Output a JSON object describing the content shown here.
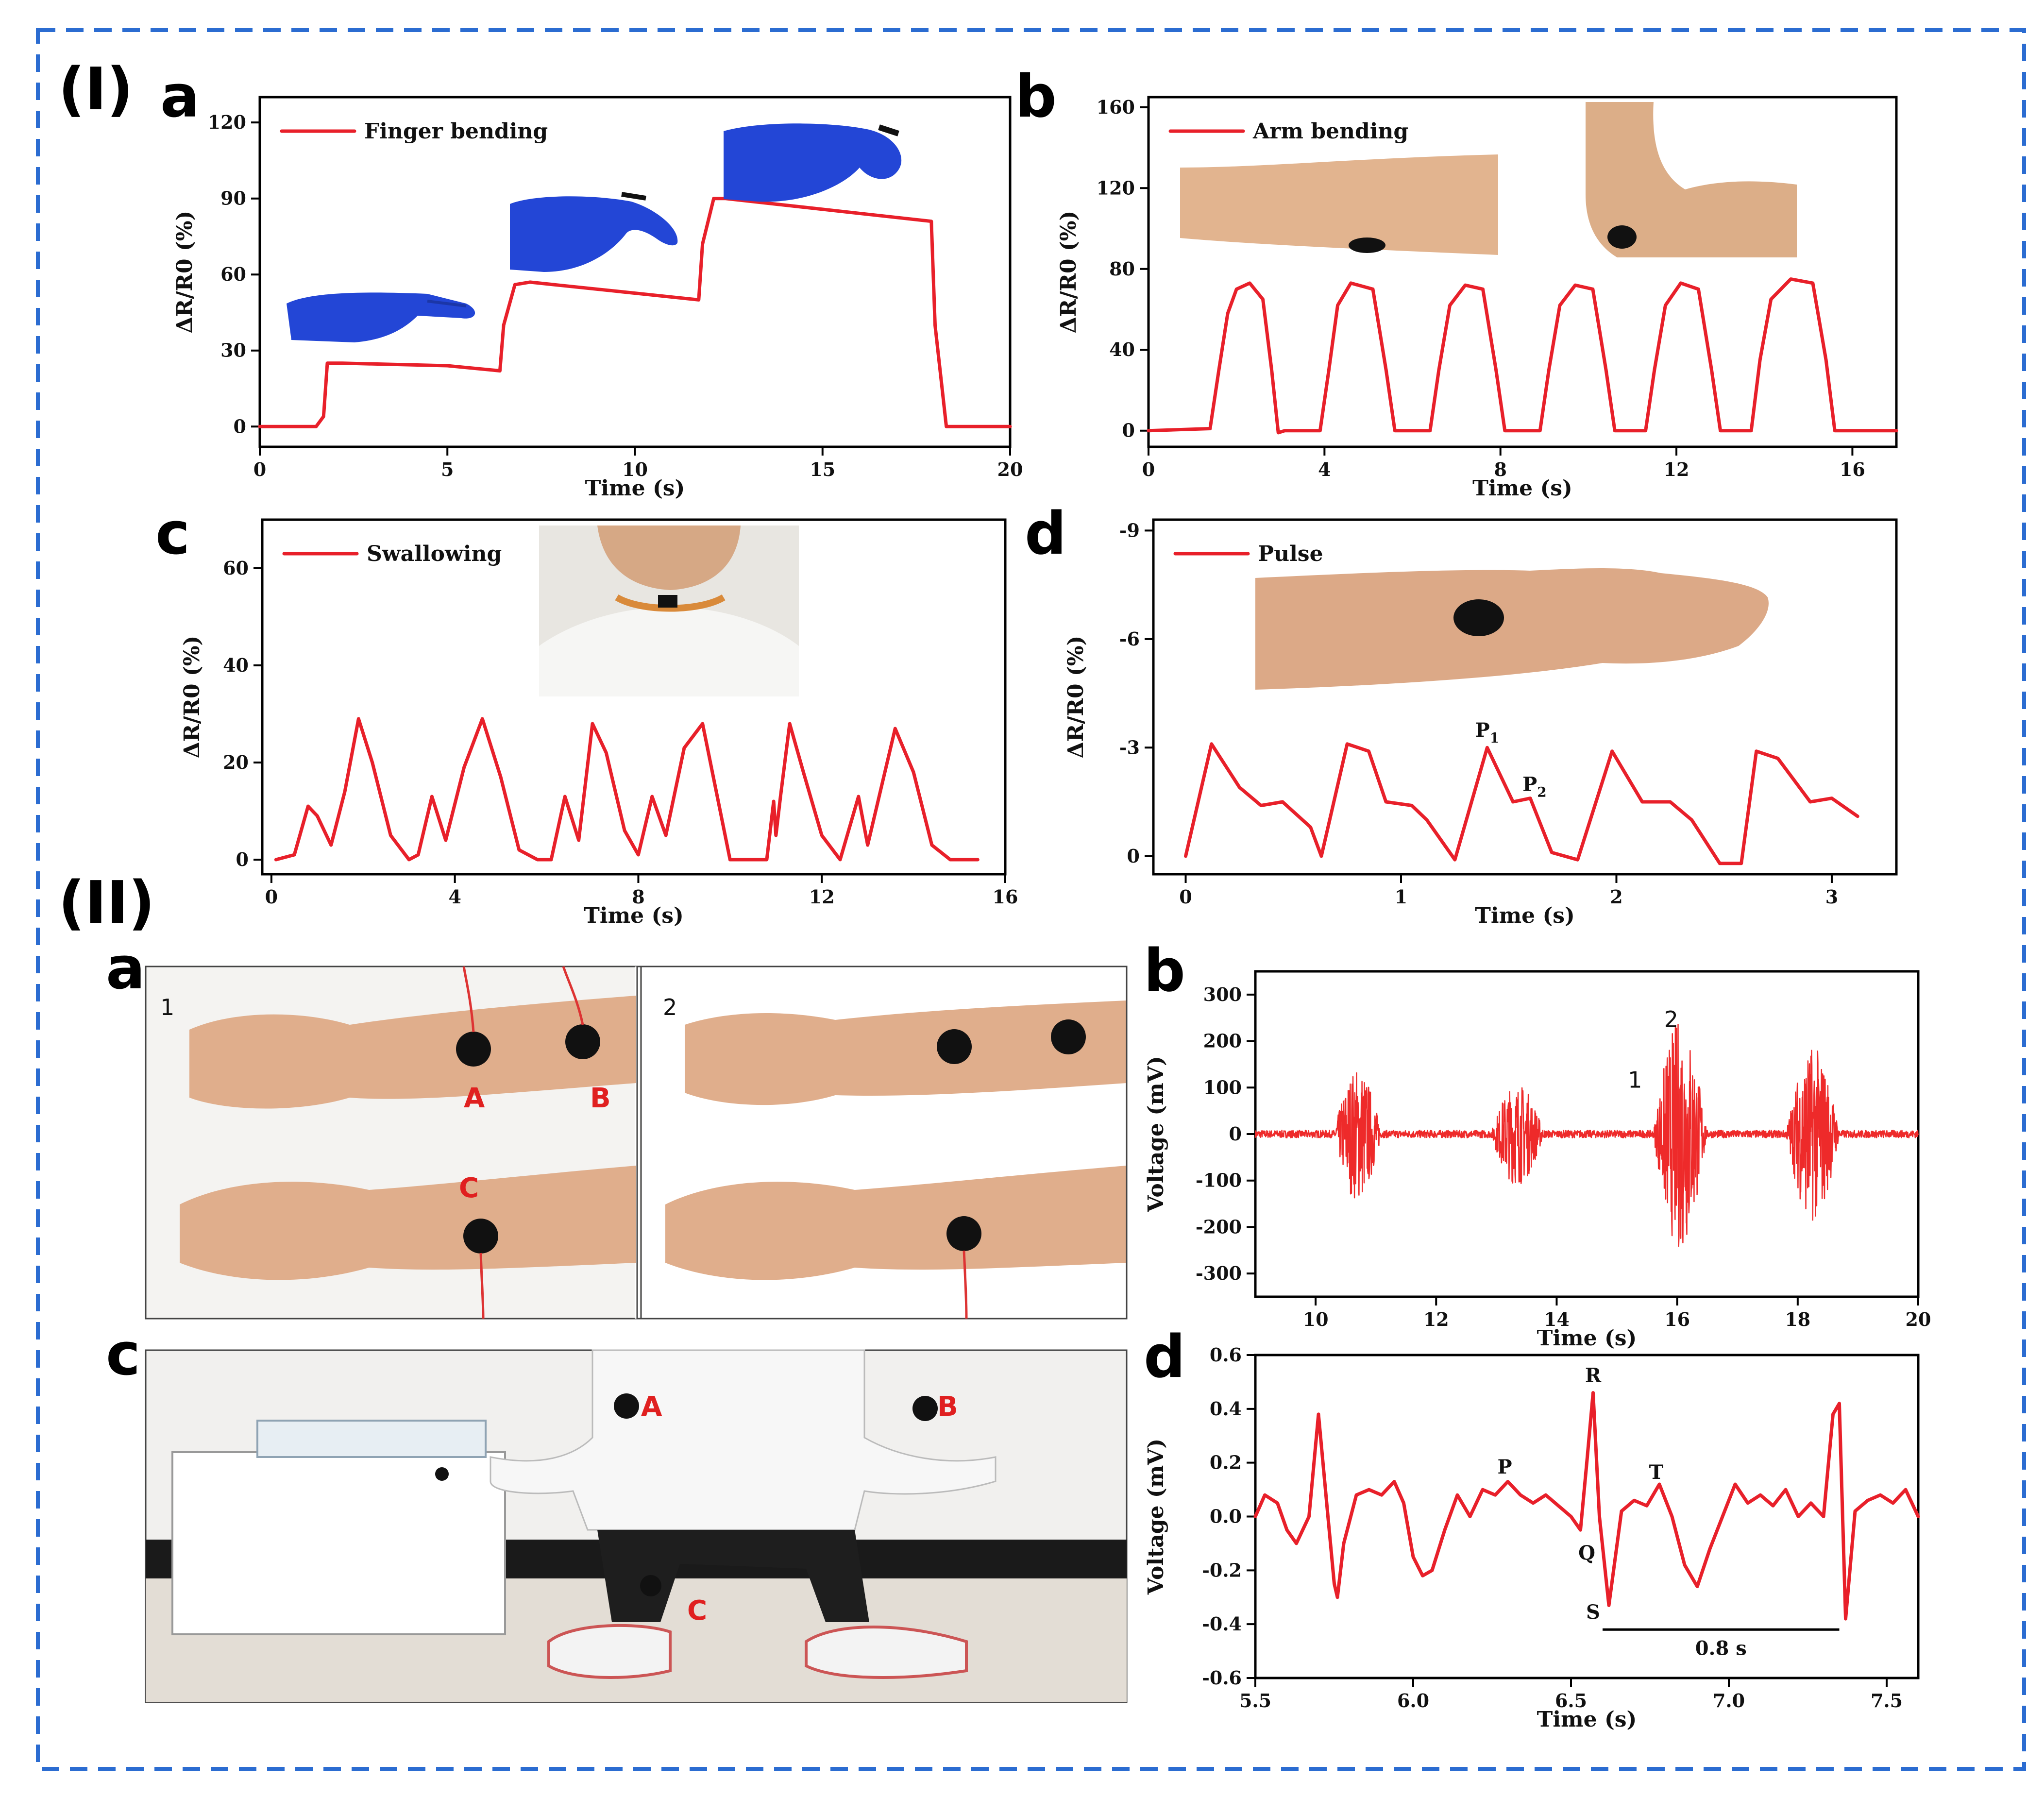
{
  "section_labels": [
    "(I)",
    "(II)"
  ],
  "colors": {
    "series": "#e8202a",
    "frame": "#2b6cd1",
    "glove": "#2346d6",
    "skin": "#e2b48f",
    "electrode": "#111111"
  },
  "photos": {
    "I_a": [
      "blue-gloved-hand-straight",
      "blue-gloved-hand-half-bent",
      "blue-gloved-hand-fully-bent"
    ],
    "I_b": [
      "arm-straight-with-electrode",
      "arm-bent-with-electrode"
    ],
    "I_c": [
      "neck-with-sensor"
    ],
    "I_d": [
      "wrist-with-sensor"
    ],
    "II_a": {
      "panel_numbers": [
        "1",
        "2"
      ],
      "electrode_labels": [
        "A",
        "B",
        "C"
      ]
    },
    "II_c": {
      "electrode_labels": [
        "A",
        "B",
        "C"
      ]
    }
  },
  "chart_data": [
    {
      "id": "I-a",
      "letter": "a",
      "type": "line",
      "xlabel": "Time (s)",
      "ylabel": "ΔR/R0 (%)",
      "xlim": [
        0,
        20
      ],
      "ylim": [
        -8,
        130
      ],
      "xticks": [
        0,
        5,
        10,
        15,
        20
      ],
      "yticks": [
        0,
        30,
        60,
        90,
        120
      ],
      "legend": "top-left",
      "series": [
        {
          "name": "Finger bending",
          "x": [
            0,
            1.5,
            1.7,
            1.8,
            2.2,
            5,
            6.4,
            6.5,
            6.8,
            7.2,
            11.7,
            11.8,
            12.1,
            12.4,
            17.9,
            18.0,
            18.3,
            20
          ],
          "y": [
            0,
            0,
            4,
            25,
            25,
            24,
            22,
            40,
            56,
            57,
            50,
            72,
            90,
            90,
            81,
            40,
            0,
            0
          ]
        }
      ]
    },
    {
      "id": "I-b",
      "letter": "b",
      "type": "line",
      "xlabel": "Time (s)",
      "ylabel": "ΔR/R0 (%)",
      "xlim": [
        0,
        17
      ],
      "ylim": [
        -8,
        165
      ],
      "xticks": [
        0,
        4,
        8,
        12,
        16
      ],
      "yticks": [
        0,
        40,
        80,
        120,
        160
      ],
      "legend": "top-left",
      "series": [
        {
          "name": "Arm bending",
          "x": [
            0,
            1.4,
            1.6,
            1.8,
            2.0,
            2.3,
            2.6,
            2.8,
            2.95,
            3.1,
            3.9,
            4.1,
            4.3,
            4.6,
            5.1,
            5.4,
            5.6,
            6.4,
            6.6,
            6.85,
            7.2,
            7.6,
            7.9,
            8.1,
            8.9,
            9.1,
            9.35,
            9.7,
            10.1,
            10.4,
            10.6,
            11.3,
            11.5,
            11.75,
            12.1,
            12.5,
            12.8,
            13.0,
            13.7,
            13.9,
            14.15,
            14.6,
            15.1,
            15.4,
            15.6,
            17
          ],
          "y": [
            0,
            1,
            30,
            58,
            70,
            73,
            65,
            30,
            -1,
            0,
            0,
            30,
            62,
            73,
            70,
            30,
            0,
            0,
            30,
            62,
            72,
            70,
            30,
            0,
            0,
            30,
            62,
            72,
            70,
            30,
            0,
            0,
            30,
            62,
            73,
            70,
            30,
            0,
            0,
            35,
            65,
            75,
            73,
            35,
            0,
            0
          ]
        }
      ]
    },
    {
      "id": "I-c",
      "letter": "c",
      "type": "line",
      "xlabel": "Time (s)",
      "ylabel": "ΔR/R0 (%)",
      "xlim": [
        -0.2,
        16
      ],
      "ylim": [
        -3,
        70
      ],
      "xticks": [
        0,
        4,
        8,
        12,
        16
      ],
      "yticks": [
        0,
        20,
        40,
        60
      ],
      "legend": "top-left",
      "series": [
        {
          "name": "Swallowing",
          "x": [
            0.1,
            0.5,
            0.8,
            1.0,
            1.3,
            1.6,
            1.9,
            2.2,
            2.6,
            3.0,
            3.2,
            3.5,
            3.8,
            4.2,
            4.6,
            5.0,
            5.4,
            5.8,
            6.1,
            6.4,
            6.7,
            7.0,
            7.3,
            7.7,
            8.0,
            8.3,
            8.6,
            9.0,
            9.4,
            9.7,
            10.0,
            10.4,
            10.8,
            10.95,
            11.0,
            11.1,
            11.3,
            11.6,
            12.0,
            12.4,
            12.8,
            13.0,
            13.3,
            13.6,
            14.0,
            14.4,
            14.8,
            15.4
          ],
          "y": [
            0,
            1,
            11,
            9,
            3,
            14,
            29,
            20,
            5,
            0,
            1,
            13,
            4,
            19,
            29,
            17,
            2,
            0,
            0,
            13,
            4,
            28,
            22,
            6,
            1,
            13,
            5,
            23,
            28,
            14,
            0,
            0,
            0,
            12,
            5,
            13,
            28,
            18,
            5,
            0,
            13,
            3,
            15,
            27,
            18,
            3,
            0,
            0
          ]
        }
      ]
    },
    {
      "id": "I-d",
      "letter": "d",
      "type": "line",
      "xlabel": "Time (s)",
      "ylabel": "ΔR/R0 (%)",
      "xlim": [
        -0.15,
        3.3
      ],
      "ylim": [
        0.5,
        -9.3
      ],
      "xticks": [
        0,
        1,
        2,
        3
      ],
      "yticks": [
        0,
        -3,
        -6,
        -9
      ],
      "xtick_labels": [
        "0",
        "1",
        "2",
        "3"
      ],
      "ytick_labels": [
        "0",
        "-3",
        "-6",
        "-9"
      ],
      "legend": "top-left",
      "annotations": [
        {
          "text": "P",
          "sub": "1",
          "x": 1.4,
          "y": -3.3
        },
        {
          "text": "P",
          "sub": "2",
          "x": 1.62,
          "y": -1.8
        }
      ],
      "series": [
        {
          "name": "Pulse",
          "x": [
            0,
            0.12,
            0.25,
            0.35,
            0.45,
            0.58,
            0.63,
            0.75,
            0.85,
            0.93,
            1.05,
            1.12,
            1.25,
            1.4,
            1.52,
            1.6,
            1.7,
            1.82,
            1.98,
            2.12,
            2.25,
            2.35,
            2.48,
            2.58,
            2.65,
            2.75,
            2.9,
            3.0,
            3.12
          ],
          "y": [
            0,
            -3.1,
            -1.9,
            -1.4,
            -1.5,
            -0.8,
            0,
            -3.1,
            -2.9,
            -1.5,
            -1.4,
            -1.0,
            0.1,
            -3.0,
            -1.5,
            -1.6,
            -0.1,
            0.1,
            -2.9,
            -1.5,
            -1.5,
            -1.0,
            0.2,
            0.2,
            -2.9,
            -2.7,
            -1.5,
            -1.6,
            -1.1
          ]
        }
      ]
    },
    {
      "id": "II-b",
      "letter": "b",
      "type": "line",
      "xlabel": "Time (s)",
      "ylabel": "Voltage (mV)",
      "xlim": [
        9,
        20
      ],
      "ylim": [
        -350,
        350
      ],
      "xticks": [
        10,
        12,
        14,
        16,
        18,
        20
      ],
      "yticks": [
        -300,
        -200,
        -100,
        0,
        100,
        200,
        300
      ],
      "annotations": [
        {
          "text": "1",
          "x": 15.3,
          "y": 100
        },
        {
          "text": "2",
          "x": 15.9,
          "y": 230
        }
      ],
      "bursts": [
        {
          "start": 10.3,
          "end": 11.1,
          "amp": 145
        },
        {
          "start": 12.9,
          "end": 13.8,
          "amp": 110
        },
        {
          "start": 15.6,
          "end": 16.5,
          "amp": 250
        },
        {
          "start": 17.8,
          "end": 18.7,
          "amp": 190
        }
      ],
      "baseline_noise": 8,
      "series": [
        {
          "name": ""
        }
      ]
    },
    {
      "id": "II-d",
      "letter": "d",
      "type": "line",
      "xlabel": "Time (s)",
      "ylabel": "Voltage (mV)",
      "xlim": [
        5.5,
        7.6
      ],
      "ylim": [
        -0.6,
        0.6
      ],
      "xticks": [
        5.5,
        6.0,
        6.5,
        7.0,
        7.5
      ],
      "yticks": [
        -0.6,
        -0.4,
        -0.2,
        0.0,
        0.2,
        0.4,
        0.6
      ],
      "xtick_labels": [
        "5.5",
        "6.0",
        "6.5",
        "7.0",
        "7.5"
      ],
      "ytick_labels": [
        "-0.6",
        "-0.4",
        "-0.2",
        "0.0",
        "0.2",
        "0.4",
        "0.6"
      ],
      "annotations": [
        {
          "text": "R",
          "x": 6.57,
          "y": 0.5
        },
        {
          "text": "P",
          "x": 6.29,
          "y": 0.16
        },
        {
          "text": "T",
          "x": 6.77,
          "y": 0.14
        },
        {
          "text": "Q",
          "x": 6.55,
          "y": -0.16
        },
        {
          "text": "S",
          "x": 6.57,
          "y": -0.38
        }
      ],
      "interval": {
        "from": 6.6,
        "to": 7.35,
        "y": -0.42,
        "label": "0.8 s"
      },
      "series": [
        {
          "name": "",
          "x": [
            5.5,
            5.53,
            5.57,
            5.6,
            5.63,
            5.67,
            5.7,
            5.73,
            5.75,
            5.76,
            5.78,
            5.82,
            5.86,
            5.9,
            5.94,
            5.97,
            6.0,
            6.03,
            6.06,
            6.1,
            6.14,
            6.18,
            6.22,
            6.26,
            6.3,
            6.34,
            6.38,
            6.42,
            6.46,
            6.5,
            6.53,
            6.55,
            6.57,
            6.59,
            6.62,
            6.66,
            6.7,
            6.74,
            6.78,
            6.82,
            6.86,
            6.9,
            6.94,
            6.98,
            7.02,
            7.06,
            7.1,
            7.14,
            7.18,
            7.22,
            7.26,
            7.3,
            7.33,
            7.35,
            7.37,
            7.4,
            7.44,
            7.48,
            7.52,
            7.56,
            7.6
          ],
          "y": [
            0.0,
            0.08,
            0.05,
            -0.05,
            -0.1,
            0.0,
            0.38,
            0.0,
            -0.25,
            -0.3,
            -0.1,
            0.08,
            0.1,
            0.08,
            0.13,
            0.05,
            -0.15,
            -0.22,
            -0.2,
            -0.05,
            0.08,
            0.0,
            0.1,
            0.08,
            0.13,
            0.08,
            0.05,
            0.08,
            0.04,
            0.0,
            -0.05,
            0.2,
            0.46,
            0.0,
            -0.33,
            0.02,
            0.06,
            0.04,
            0.12,
            0.0,
            -0.18,
            -0.26,
            -0.12,
            0.0,
            0.12,
            0.05,
            0.08,
            0.04,
            0.1,
            0.0,
            0.05,
            0.0,
            0.38,
            0.42,
            -0.38,
            0.02,
            0.06,
            0.08,
            0.05,
            0.1,
            0.0
          ]
        }
      ]
    }
  ]
}
